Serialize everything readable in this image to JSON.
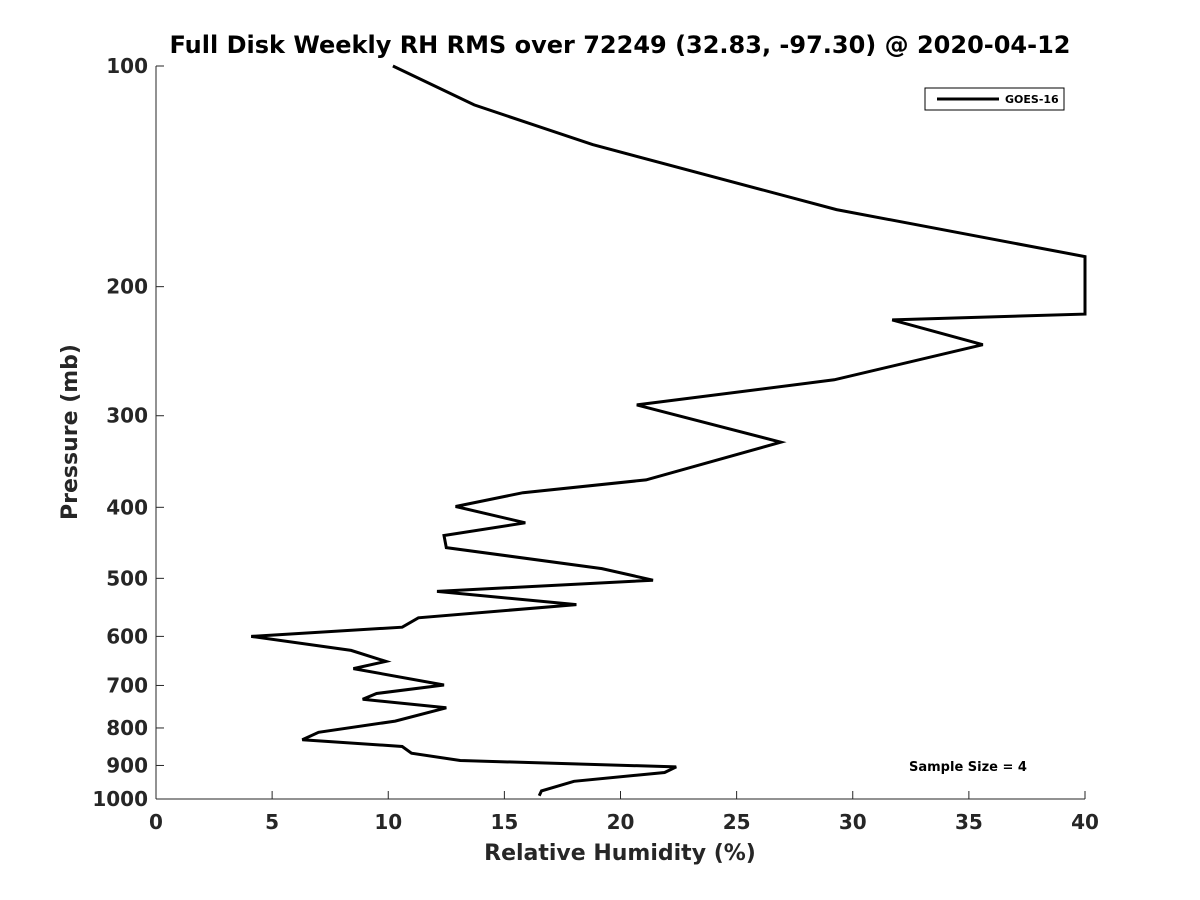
{
  "chart_data": {
    "type": "line",
    "title": "Full Disk Weekly RH RMS over 72249 (32.83, -97.30) @ 2020-04-12",
    "xlabel": "Relative Humidity (%)",
    "ylabel": "Pressure (mb)",
    "xlim": [
      0,
      40
    ],
    "ylim": [
      1000,
      100
    ],
    "yscale": "log",
    "xticks": [
      0,
      5,
      10,
      15,
      20,
      25,
      30,
      35,
      40
    ],
    "xtick_labels": [
      "0",
      "5",
      "10",
      "15",
      "20",
      "25",
      "30",
      "35",
      "40"
    ],
    "yticks": [
      100,
      200,
      300,
      400,
      500,
      600,
      700,
      800,
      900,
      1000
    ],
    "ytick_labels": [
      "100",
      "200",
      "300",
      "400",
      "500",
      "600",
      "700",
      "800",
      "900",
      "1000"
    ],
    "grid": false,
    "legend_position": "top-right",
    "annotation": "Sample Size = 4",
    "series": [
      {
        "name": "GOES-16",
        "color": "#000000",
        "x": [
          10.2,
          13.7,
          18.8,
          29.3,
          40.0,
          40.0,
          31.7,
          35.6,
          29.2,
          20.7,
          26.9,
          21.1,
          15.8,
          12.9,
          15.9,
          12.4,
          12.5,
          19.2,
          21.4,
          12.1,
          18.1,
          11.3,
          10.6,
          4.1,
          8.4,
          9.9,
          8.5,
          12.4,
          9.5,
          8.9,
          12.5,
          10.3,
          7.0,
          6.3,
          10.6,
          11.0,
          13.1,
          22.4,
          21.9,
          18.0,
          16.6,
          16.5
        ],
        "y": [
          100,
          113,
          128,
          157,
          182,
          218,
          222,
          240,
          268,
          290,
          326,
          367,
          382,
          399,
          420,
          437,
          454,
          485,
          503,
          521,
          543,
          566,
          583,
          600,
          627,
          649,
          664,
          699,
          718,
          731,
          751,
          783,
          811,
          830,
          848,
          866,
          886,
          904,
          920,
          946,
          975,
          990
        ]
      }
    ]
  }
}
